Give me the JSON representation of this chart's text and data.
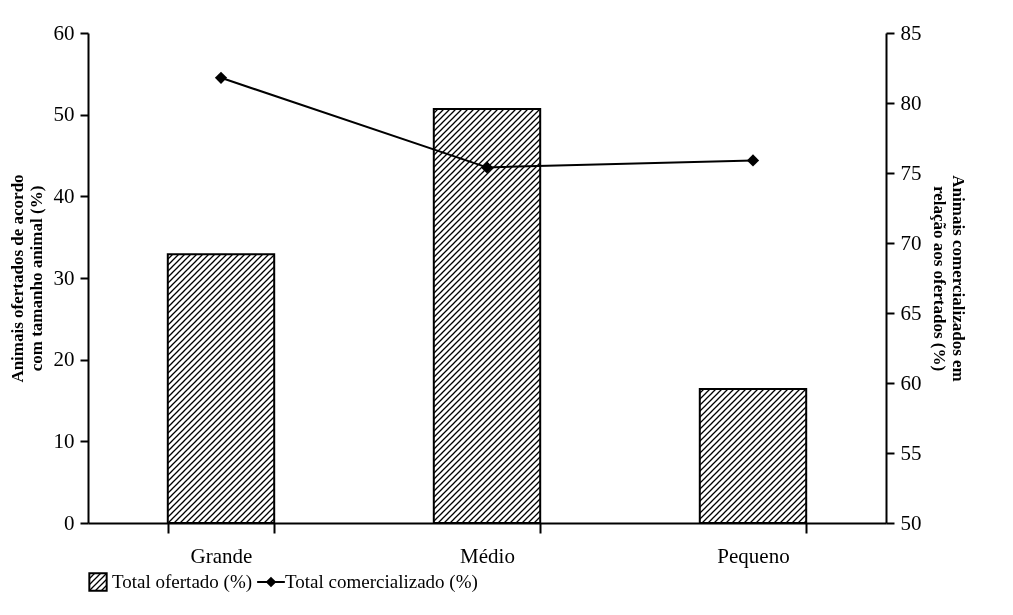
{
  "chart_data": {
    "type": "bar",
    "categories": [
      "Grande",
      "Médio",
      "Pequeno"
    ],
    "ylabel": "Animais ofertados de acordo com tamanho animal (%)",
    "y2label": "Animais comercializados em relação aos ofertados (%)",
    "series": [
      {
        "name": "Total ofertado (%)",
        "color": "#000000",
        "values": [
          32.9,
          50.7,
          16.4
        ]
      },
      {
        "name": "Total comercializado (%)",
        "type": "line",
        "axis": "y2",
        "color": "#000000",
        "values": [
          81.8,
          75.4,
          75.9
        ]
      }
    ],
    "ylim": [
      0,
      60
    ],
    "yticks": [
      0,
      10,
      20,
      30,
      40,
      50,
      60
    ],
    "y2lim": [
      50,
      85
    ],
    "y2ticks": [
      50,
      55,
      60,
      65,
      70,
      75,
      80,
      85
    ],
    "legend": "bottom",
    "marker": "diamond",
    "line_style": "solid",
    "grid": false
  }
}
